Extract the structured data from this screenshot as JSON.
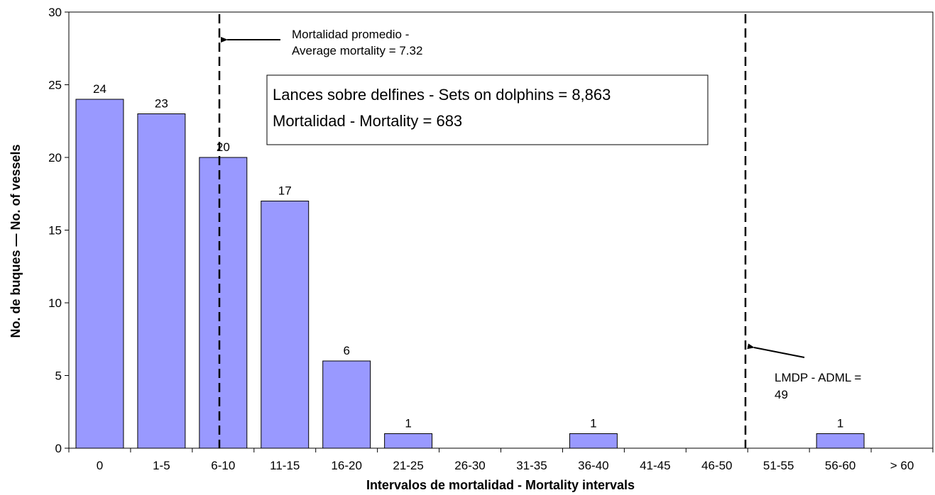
{
  "chart_data": {
    "type": "bar",
    "categories": [
      "0",
      "1-5",
      "6-10",
      "11-15",
      "16-20",
      "21-25",
      "26-30",
      "31-35",
      "36-40",
      "41-45",
      "46-50",
      "51-55",
      "56-60",
      "> 60"
    ],
    "values": [
      24,
      23,
      20,
      17,
      6,
      1,
      0,
      0,
      1,
      0,
      0,
      0,
      1,
      0
    ],
    "data_labels": [
      "24",
      "23",
      "20",
      "17",
      "6",
      "1",
      "",
      "",
      "1",
      "",
      "",
      "",
      "1",
      ""
    ],
    "xlabel": "Intervalos de mortalidad - Mortality intervals",
    "ylabel": "No. de buques — No. of vessels",
    "ylim": [
      0,
      30
    ],
    "yticks": [
      0,
      5,
      10,
      15,
      20,
      25,
      30
    ],
    "grid": false,
    "bar_color": "#9999ff",
    "reference_lines": [
      {
        "x": 7.32,
        "label_lines": [
          "Mortalidad promedio -",
          "Average mortality = 7.32"
        ]
      },
      {
        "x": 49,
        "label_lines": [
          "LMDP - ADML =",
          "49"
        ]
      }
    ],
    "info_box": {
      "lines": [
        "Lances sobre delfines - Sets on dolphins = 8,863",
        "Mortalidad - Mortality = 683"
      ]
    }
  }
}
